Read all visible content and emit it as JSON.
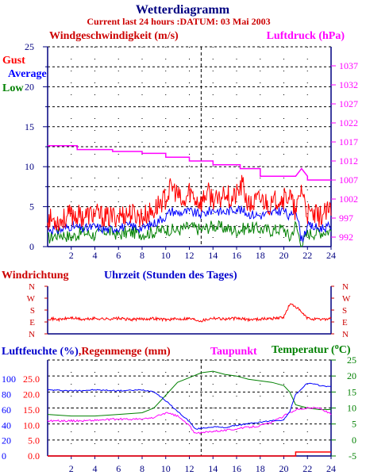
{
  "header": {
    "title": "Wetterdiagramm",
    "subtitle": "Current last 24 hours :DATUM: 03 Mai 2003"
  },
  "colors": {
    "red": "#ff0000",
    "blue": "#0000ff",
    "green": "#008000",
    "magenta": "#ff00ff",
    "darkred": "#cc0000",
    "navy": "#000080",
    "grid": "#000000"
  },
  "chart_data": [
    {
      "type": "line",
      "title": "Windgeschwindigkeit (m/s)",
      "ylabel": "Windgeschwindigkeit (m/s)",
      "ylabel_right": "Luftdruck (hPa)",
      "xlim": [
        0,
        24
      ],
      "ylim": [
        0,
        25
      ],
      "ylim_right": [
        989.5,
        1042
      ],
      "x_ticks": [
        2,
        4,
        6,
        8,
        10,
        12,
        14,
        16,
        18,
        20,
        22,
        24
      ],
      "y_ticks": [
        0,
        5,
        10,
        15,
        20,
        25
      ],
      "y_ticks_right": [
        992,
        997,
        1002,
        1007,
        1012,
        1017,
        1022,
        1027,
        1032,
        1037
      ],
      "legend": [
        "Gust",
        "Average",
        "Low"
      ],
      "legend_position": "top-left",
      "grid": true,
      "marker_x": 13,
      "series": [
        {
          "name": "Gust",
          "color": "red",
          "x": [
            0,
            1,
            2,
            3,
            4,
            5,
            6,
            7,
            8,
            9,
            9.5,
            10,
            10.5,
            11,
            11.5,
            12,
            12.5,
            13,
            13.5,
            14,
            14.5,
            15,
            15.5,
            16,
            16.5,
            17,
            17.5,
            18,
            18.5,
            19,
            19.5,
            20,
            20.5,
            21,
            21.5,
            22,
            23,
            24
          ],
          "values": [
            3.5,
            3.2,
            4.0,
            3.8,
            4.1,
            3.6,
            3.9,
            4.2,
            3.7,
            4.5,
            5.5,
            6.0,
            7.5,
            6.5,
            5.0,
            7.0,
            6.0,
            5.5,
            6.8,
            6.0,
            5.5,
            7.2,
            5.8,
            6.5,
            7.8,
            5.0,
            5.5,
            6.0,
            5.6,
            5.0,
            6.2,
            6.0,
            6.5,
            4.0,
            7.5,
            4.0,
            3.8,
            4.5
          ]
        },
        {
          "name": "Average",
          "color": "blue",
          "x": [
            0,
            1,
            2,
            3,
            4,
            5,
            6,
            7,
            8,
            9,
            10,
            10.5,
            11,
            12,
            13,
            14,
            15,
            16,
            17,
            18,
            19,
            20,
            20.5,
            21,
            21.5,
            22,
            23,
            24
          ],
          "values": [
            2.3,
            2.0,
            2.6,
            2.2,
            2.5,
            2.1,
            2.4,
            2.6,
            2.3,
            2.9,
            3.8,
            4.5,
            4.2,
            4.4,
            4.0,
            4.6,
            4.3,
            4.8,
            4.1,
            3.9,
            4.2,
            4.6,
            3.5,
            5.0,
            0.8,
            2.6,
            2.3,
            2.5
          ]
        },
        {
          "name": "Low",
          "color": "green",
          "x": [
            0,
            1,
            2,
            3,
            4,
            5,
            6,
            7,
            8,
            9,
            10,
            11,
            12,
            13,
            14,
            15,
            16,
            17,
            18,
            19,
            20,
            20.5,
            21,
            21.5,
            22,
            23,
            24
          ],
          "values": [
            1.0,
            1.6,
            1.2,
            1.8,
            1.4,
            2.0,
            1.5,
            1.8,
            1.6,
            1.8,
            2.2,
            2.0,
            2.5,
            2.1,
            2.6,
            2.3,
            2.0,
            2.4,
            2.2,
            2.0,
            2.3,
            1.0,
            2.8,
            0.2,
            1.6,
            1.8,
            2.0
          ]
        },
        {
          "name": "Luftdruck (hPa)",
          "color": "magenta",
          "axis": "right",
          "x": [
            0,
            2.5,
            2.5,
            5.5,
            5.5,
            8,
            8,
            10,
            10,
            12,
            12,
            14,
            14,
            16.3,
            16.3,
            18,
            18,
            21,
            21.5,
            22,
            22,
            24
          ],
          "values": [
            1016,
            1016,
            1015,
            1015,
            1014.5,
            1014.5,
            1014,
            1014,
            1013,
            1013,
            1012,
            1012,
            1011,
            1011,
            1010,
            1010,
            1008,
            1008,
            1010,
            1008,
            1007,
            1007
          ]
        }
      ]
    },
    {
      "type": "line",
      "title": "Windrichtung",
      "xlabel": "Uhrzeit (Stunden des Tages)",
      "xlim": [
        0,
        24
      ],
      "y_tick_labels": [
        "N",
        "W",
        "S",
        "E",
        "N"
      ],
      "series": [
        {
          "name": "Windrichtung",
          "color": "red",
          "x": [
            0,
            1,
            2,
            3,
            4,
            5,
            6,
            7,
            8,
            9,
            10,
            11,
            12,
            13,
            14,
            15,
            16,
            17,
            18,
            19,
            20,
            20.5,
            21,
            21.5,
            22,
            23,
            24
          ],
          "values": [
            1.3,
            1.2,
            1.35,
            1.2,
            1.3,
            1.25,
            1.3,
            1.2,
            1.25,
            1.3,
            1.2,
            1.25,
            1.3,
            1.1,
            1.35,
            1.25,
            1.3,
            1.2,
            1.25,
            1.3,
            1.4,
            2.5,
            2.3,
            1.8,
            1.3,
            1.2,
            1.3
          ]
        }
      ]
    },
    {
      "type": "line",
      "title": "Luftfeuchte (%), Regenmenge (mm), Taupunkt, Temperatur (°C)",
      "xlim": [
        0,
        24
      ],
      "y_ticks_humidity": [
        0,
        20,
        40,
        60,
        80,
        100
      ],
      "y_ticks_rain": [
        "0.0",
        "5.0",
        "10.0",
        "15.0",
        "20.0",
        "25.0"
      ],
      "y_ticks_temp": [
        -5,
        0,
        5,
        10,
        15,
        20,
        25
      ],
      "grid": true,
      "marker_x": 13,
      "series": [
        {
          "name": "Luftfeuchte (%)",
          "color": "blue",
          "axis": "humidity",
          "x": [
            0,
            2,
            4,
            6,
            8,
            9,
            10,
            11,
            12,
            12.5,
            13,
            14,
            15,
            16,
            17,
            18,
            19,
            20,
            20.5,
            21,
            22,
            23,
            24
          ],
          "values": [
            86,
            85,
            86,
            85,
            86,
            84,
            72,
            58,
            45,
            35,
            36,
            38,
            37,
            40,
            42,
            44,
            46,
            47,
            58,
            80,
            95,
            92,
            90
          ]
        },
        {
          "name": "Regenmenge (mm)",
          "color": "red",
          "axis": "rain",
          "x": [
            0,
            21,
            21,
            24
          ],
          "values": [
            0,
            0,
            1.3,
            1.3
          ]
        },
        {
          "name": "Taupunkt",
          "color": "magenta",
          "axis": "temp",
          "x": [
            0,
            3,
            6,
            8,
            9,
            10,
            11,
            12,
            12.5,
            13,
            14,
            15,
            16,
            17,
            18,
            19,
            20,
            21,
            22,
            23,
            24
          ],
          "values": [
            6,
            6,
            6.5,
            6.5,
            7,
            8.5,
            7.5,
            4.5,
            2,
            2.2,
            2.8,
            3,
            3.5,
            4,
            4.5,
            5.5,
            7.5,
            9.5,
            10,
            10,
            8
          ]
        },
        {
          "name": "Temperatur (°C)",
          "color": "green",
          "axis": "temp",
          "x": [
            0,
            2,
            4,
            6,
            8,
            9,
            10,
            11,
            12,
            13,
            14,
            15,
            16,
            17,
            18,
            19,
            20,
            20.5,
            21,
            22,
            23,
            24
          ],
          "values": [
            8,
            7.5,
            7.5,
            8,
            8.5,
            10,
            14,
            18,
            19.5,
            21,
            21.5,
            20.5,
            20,
            19,
            18.5,
            18,
            17,
            15,
            11,
            10,
            9.5,
            9.5
          ]
        }
      ]
    }
  ]
}
